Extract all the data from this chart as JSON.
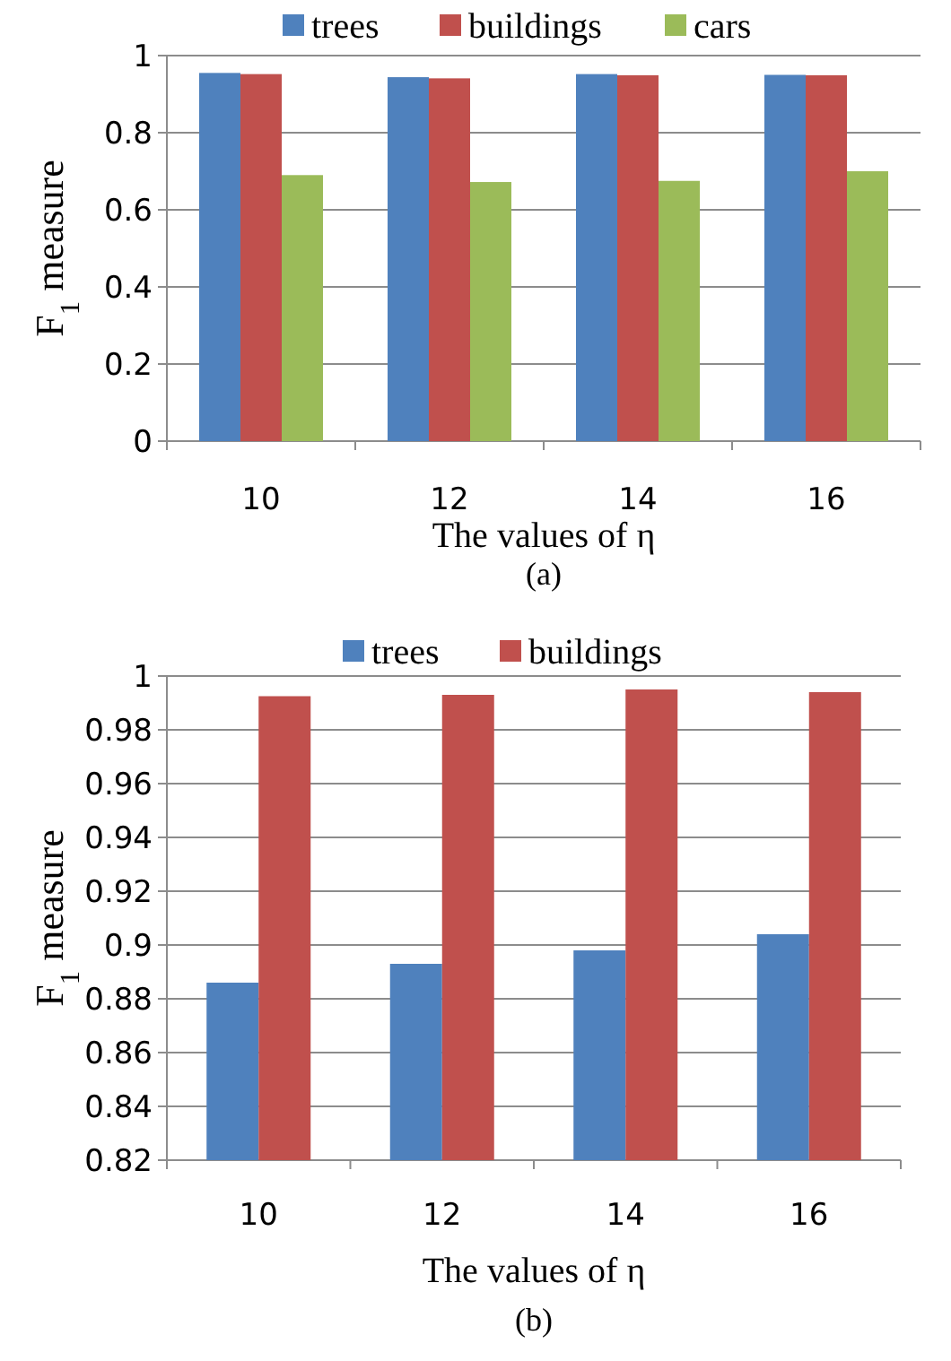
{
  "chart_data": [
    {
      "type": "bar",
      "title": "(a)",
      "xlabel": "The values of η",
      "ylabel": "F$_{1}$ measure",
      "categories": [
        "10",
        "12",
        "14",
        "16"
      ],
      "series": [
        {
          "name": "trees",
          "color": "#4f81bd",
          "values": [
            0.955,
            0.944,
            0.952,
            0.95
          ]
        },
        {
          "name": "buildings",
          "color": "#c0504d",
          "values": [
            0.952,
            0.941,
            0.949,
            0.949
          ]
        },
        {
          "name": "cars",
          "color": "#9bbb59",
          "values": [
            0.69,
            0.672,
            0.675,
            0.7
          ]
        }
      ],
      "ylim": [
        0,
        1
      ],
      "yticks": [
        0,
        0.2,
        0.4,
        0.6,
        0.8,
        1
      ],
      "grid": "y",
      "legend": "top"
    },
    {
      "type": "bar",
      "title": "(b)",
      "xlabel": "The values of η",
      "ylabel": "F$_{1}$ measure",
      "categories": [
        "10",
        "12",
        "14",
        "16"
      ],
      "series": [
        {
          "name": "trees",
          "color": "#4f81bd",
          "values": [
            0.886,
            0.893,
            0.898,
            0.904
          ]
        },
        {
          "name": "buildings",
          "color": "#c0504d",
          "values": [
            0.9925,
            0.993,
            0.995,
            0.994
          ]
        }
      ],
      "ylim": [
        0.82,
        1
      ],
      "yticks": [
        0.82,
        0.84,
        0.86,
        0.88,
        0.9,
        0.92,
        0.94,
        0.96,
        0.98,
        1
      ],
      "grid": "y",
      "legend": "top"
    }
  ]
}
